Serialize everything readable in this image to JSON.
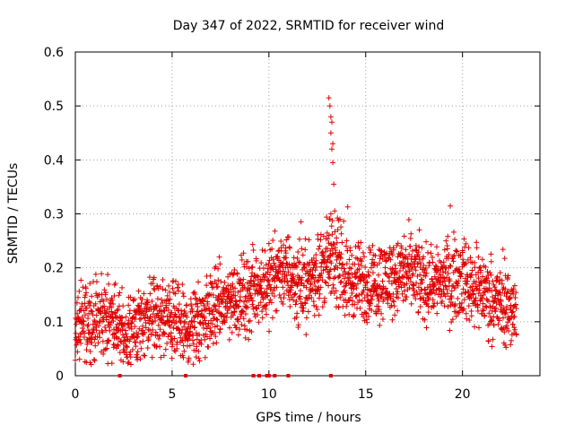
{
  "chart_data": {
    "type": "scatter",
    "title": "Day 347 of 2022, SRMTID for receiver wind",
    "xlabel": "GPS time / hours",
    "ylabel": "SRMTID / TECUs",
    "xlim": [
      0,
      24
    ],
    "ylim": [
      0,
      0.6
    ],
    "xticks": [
      0,
      5,
      10,
      15,
      20
    ],
    "yticks": [
      0,
      0.1,
      0.2,
      0.3,
      0.4,
      0.5,
      0.6
    ],
    "xtick_labels": [
      "0",
      "5",
      "10",
      "15",
      "20"
    ],
    "ytick_labels": [
      "0",
      "0.1",
      "0.2",
      "0.3",
      "0.4",
      "0.5",
      "0.6"
    ],
    "grid": true,
    "marker": "+",
    "color": "#e00000",
    "series": [
      {
        "name": "SRMTID",
        "trend": {
          "x": [
            0,
            1,
            2,
            2.5,
            3,
            4,
            5,
            5.7,
            6,
            7,
            8,
            9,
            9.5,
            10,
            10.5,
            11,
            11.5,
            12,
            12.5,
            13,
            13.5,
            14,
            15,
            16,
            17,
            17.5,
            18,
            19,
            20,
            21,
            22,
            22.8
          ],
          "y": [
            0.09,
            0.1,
            0.11,
            0.07,
            0.09,
            0.11,
            0.1,
            0.08,
            0.09,
            0.12,
            0.14,
            0.15,
            0.17,
            0.17,
            0.2,
            0.19,
            0.17,
            0.17,
            0.19,
            0.21,
            0.21,
            0.18,
            0.17,
            0.18,
            0.19,
            0.19,
            0.17,
            0.18,
            0.18,
            0.16,
            0.13,
            0.12
          ]
        },
        "spread": 0.035,
        "spike": {
          "x": [
            13.1,
            13.15,
            13.2,
            13.25,
            13.2,
            13.3,
            13.25,
            13.3,
            13.35,
            13.2,
            13.15
          ],
          "y": [
            0.515,
            0.5,
            0.48,
            0.47,
            0.45,
            0.43,
            0.42,
            0.395,
            0.355,
            0.3,
            0.29
          ]
        },
        "zero_points_x": [
          2.3,
          5.7,
          9.2,
          9.5,
          9.9,
          10.0,
          10.3,
          11.0,
          13.2
        ]
      }
    ]
  }
}
